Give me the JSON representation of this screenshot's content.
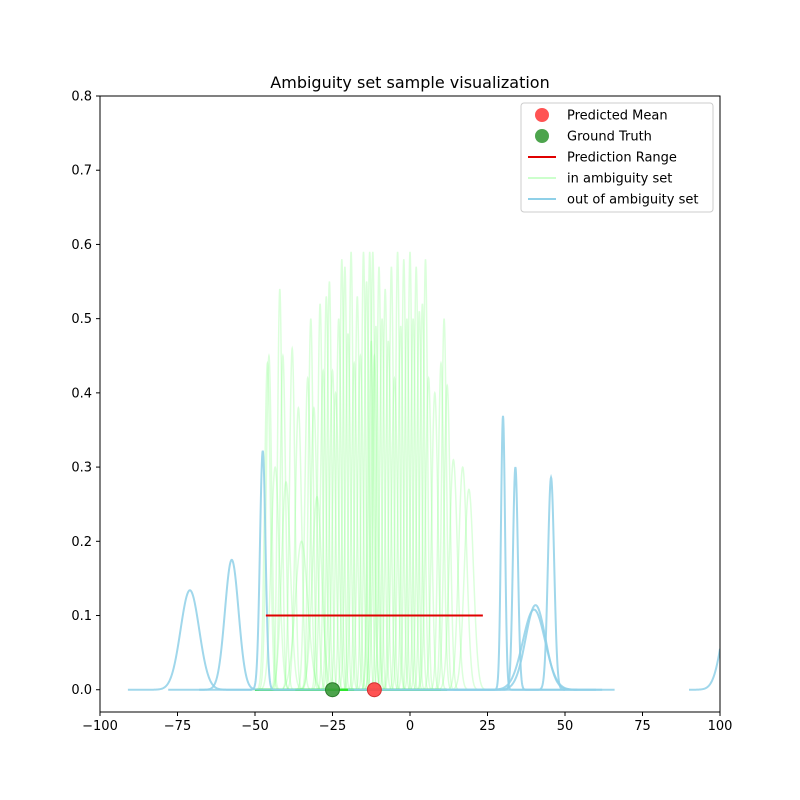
{
  "chart_data": {
    "type": "line",
    "title": "Ambiguity set sample visualization",
    "xlabel": "",
    "ylabel": "",
    "xlim": [
      -100,
      100
    ],
    "ylim": [
      -0.03,
      0.8
    ],
    "x_ticks": [
      -100,
      -75,
      -50,
      -25,
      0,
      25,
      50,
      75,
      100
    ],
    "x_tick_labels": [
      "−100",
      "−75",
      "−50",
      "−25",
      "0",
      "25",
      "50",
      "75",
      "100"
    ],
    "y_ticks": [
      0.0,
      0.1,
      0.2,
      0.3,
      0.4,
      0.5,
      0.6,
      0.7,
      0.8
    ],
    "y_tick_labels": [
      "0.0",
      "0.1",
      "0.2",
      "0.3",
      "0.4",
      "0.5",
      "0.6",
      "0.7",
      "0.8"
    ],
    "grid": false,
    "legend_position": "top-right",
    "legend": [
      {
        "label": "Predicted Mean",
        "kind": "marker",
        "color": "#ff4040"
      },
      {
        "label": "Ground Truth",
        "kind": "marker",
        "color": "#3a9a3a"
      },
      {
        "label": "Prediction Range",
        "kind": "line",
        "color": "#e00000"
      },
      {
        "label": "in ambiguity set",
        "kind": "line",
        "color": "#ccffcc"
      },
      {
        "label": "out of ambiguity set",
        "kind": "line",
        "color": "#8fd0e8"
      }
    ],
    "predicted_mean": {
      "x": -11.5,
      "y": 0.0,
      "color": "#ff4040"
    },
    "ground_truth": {
      "x": -25,
      "y": 0.0,
      "color": "#3a9a3a"
    },
    "prediction_range": {
      "x": [
        -46.5,
        23.5
      ],
      "y": 0.1,
      "color": "#e00000"
    },
    "in_ambiguity_set": {
      "color": "#7dff7d",
      "peaks": [
        {
          "mu": -46,
          "peak": 0.44
        },
        {
          "mu": -45.5,
          "peak": 0.45
        },
        {
          "mu": -43.5,
          "peak": 0.3
        },
        {
          "mu": -42,
          "peak": 0.54
        },
        {
          "mu": -41,
          "peak": 0.45
        },
        {
          "mu": -40,
          "peak": 0.28
        },
        {
          "mu": -38,
          "peak": 0.46
        },
        {
          "mu": -36,
          "peak": 0.38
        },
        {
          "mu": -35,
          "peak": 0.2
        },
        {
          "mu": -33,
          "peak": 0.42
        },
        {
          "mu": -32,
          "peak": 0.5
        },
        {
          "mu": -31,
          "peak": 0.38
        },
        {
          "mu": -30,
          "peak": 0.26
        },
        {
          "mu": -29,
          "peak": 0.52
        },
        {
          "mu": -28,
          "peak": 0.43
        },
        {
          "mu": -27,
          "peak": 0.53
        },
        {
          "mu": -26,
          "peak": 0.55
        },
        {
          "mu": -25,
          "peak": 0.43
        },
        {
          "mu": -24,
          "peak": 0.4
        },
        {
          "mu": -23,
          "peak": 0.5
        },
        {
          "mu": -22,
          "peak": 0.58
        },
        {
          "mu": -21,
          "peak": 0.57
        },
        {
          "mu": -20,
          "peak": 0.48
        },
        {
          "mu": -19,
          "peak": 0.59
        },
        {
          "mu": -18,
          "peak": 0.44
        },
        {
          "mu": -17,
          "peak": 0.53
        },
        {
          "mu": -16,
          "peak": 0.45
        },
        {
          "mu": -15,
          "peak": 0.59
        },
        {
          "mu": -14,
          "peak": 0.55
        },
        {
          "mu": -13,
          "peak": 0.59
        },
        {
          "mu": -12.5,
          "peak": 0.47
        },
        {
          "mu": -12,
          "peak": 0.59
        },
        {
          "mu": -11.5,
          "peak": 0.45
        },
        {
          "mu": -11,
          "peak": 0.49
        },
        {
          "mu": -10,
          "peak": 0.57
        },
        {
          "mu": -9,
          "peak": 0.5
        },
        {
          "mu": -8,
          "peak": 0.54
        },
        {
          "mu": -7,
          "peak": 0.47
        },
        {
          "mu": -6,
          "peak": 0.57
        },
        {
          "mu": -5,
          "peak": 0.42
        },
        {
          "mu": -4,
          "peak": 0.59
        },
        {
          "mu": -3,
          "peak": 0.49
        },
        {
          "mu": -2,
          "peak": 0.58
        },
        {
          "mu": -1,
          "peak": 0.5
        },
        {
          "mu": 0,
          "peak": 0.59
        },
        {
          "mu": 1,
          "peak": 0.5
        },
        {
          "mu": 2,
          "peak": 0.57
        },
        {
          "mu": 3,
          "peak": 0.51
        },
        {
          "mu": 4,
          "peak": 0.52
        },
        {
          "mu": 5,
          "peak": 0.58
        },
        {
          "mu": 6,
          "peak": 0.42
        },
        {
          "mu": 8,
          "peak": 0.4
        },
        {
          "mu": 10,
          "peak": 0.44
        },
        {
          "mu": 11,
          "peak": 0.5
        },
        {
          "mu": 12,
          "peak": 0.41
        },
        {
          "mu": 14,
          "peak": 0.31
        },
        {
          "mu": 17,
          "peak": 0.3
        },
        {
          "mu": 19,
          "peak": 0.27
        }
      ]
    },
    "out_of_ambiguity_set": {
      "color": "#8fd0e8",
      "curves": [
        {
          "mu": -71,
          "sigma": 3.0,
          "peak": 0.134,
          "x_range": [
            -91,
            -51
          ]
        },
        {
          "mu": -57.5,
          "sigma": 2.2,
          "peak": 0.175,
          "x_range": [
            -78,
            -37
          ]
        },
        {
          "mu": -47.5,
          "sigma": 0.9,
          "peak": 0.322,
          "x_range": [
            -68,
            -27
          ]
        },
        {
          "mu": 30,
          "sigma": 0.65,
          "peak": 0.369,
          "x_range": [
            10,
            50
          ]
        },
        {
          "mu": 34,
          "sigma": 0.8,
          "peak": 0.3,
          "x_range": [
            14,
            54
          ]
        },
        {
          "mu": 40.5,
          "sigma": 3.2,
          "peak": 0.114,
          "x_range": [
            -20,
            60
          ]
        },
        {
          "mu": 40,
          "sigma": 3.6,
          "peak": 0.108,
          "x_range": [
            -18,
            62
          ]
        },
        {
          "mu": 45.5,
          "sigma": 1.0,
          "peak": 0.286,
          "x_range": [
            25,
            66
          ]
        },
        {
          "mu": 104,
          "sigma": 3.0,
          "peak": 0.134,
          "x_range": [
            90,
            100
          ]
        }
      ]
    }
  }
}
